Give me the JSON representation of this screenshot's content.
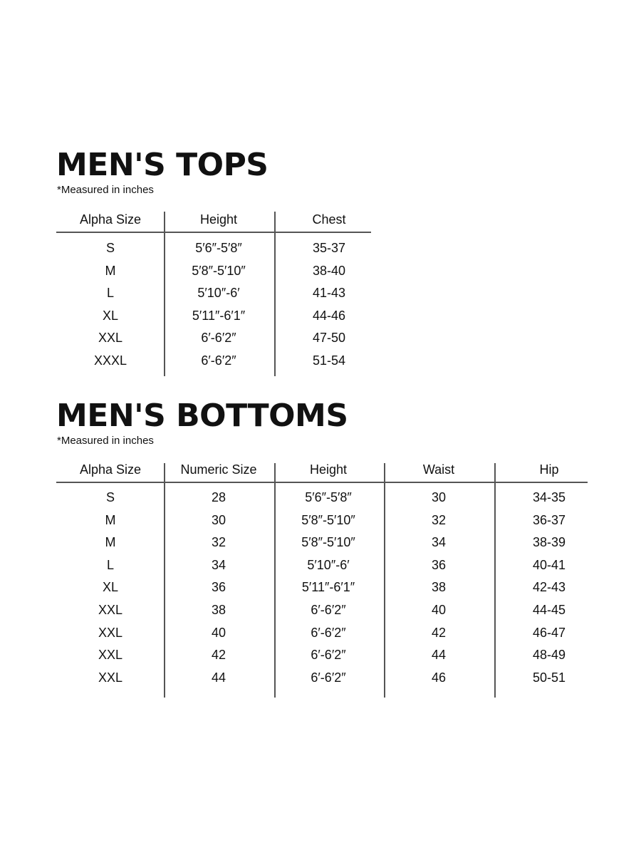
{
  "tops": {
    "title": "MEN'S TOPS",
    "note": "*Measured in inches",
    "headers": [
      "Alpha Size",
      "Height",
      "Chest"
    ],
    "rows": [
      [
        "S",
        "5′6″-5′8″",
        "35-37"
      ],
      [
        "M",
        "5′8″-5′10″",
        "38-40"
      ],
      [
        "L",
        "5′10″-6′",
        "41-43"
      ],
      [
        "XL",
        "5′11″-6′1″",
        "44-46"
      ],
      [
        "XXL",
        "6′-6′2″",
        "47-50"
      ],
      [
        "XXXL",
        "6′-6′2″",
        "51-54"
      ]
    ]
  },
  "bottoms": {
    "title": "MEN'S BOTTOMS",
    "note": "*Measured in inches",
    "headers": [
      "Alpha Size",
      "Numeric Size",
      "Height",
      "Waist",
      "Hip"
    ],
    "rows": [
      [
        "S",
        "28",
        "5′6″-5′8″",
        "30",
        "34-35"
      ],
      [
        "M",
        "30",
        "5′8″-5′10″",
        "32",
        "36-37"
      ],
      [
        "M",
        "32",
        "5′8″-5′10″",
        "34",
        "38-39"
      ],
      [
        "L",
        "34",
        "5′10″-6′",
        "36",
        "40-41"
      ],
      [
        "XL",
        "36",
        "5′11″-6′1″",
        "38",
        "42-43"
      ],
      [
        "XXL",
        "38",
        "6′-6′2″",
        "40",
        "44-45"
      ],
      [
        "XXL",
        "40",
        "6′-6′2″",
        "42",
        "46-47"
      ],
      [
        "XXL",
        "42",
        "6′-6′2″",
        "44",
        "48-49"
      ],
      [
        "XXL",
        "44",
        "6′-6′2″",
        "46",
        "50-51"
      ]
    ]
  }
}
